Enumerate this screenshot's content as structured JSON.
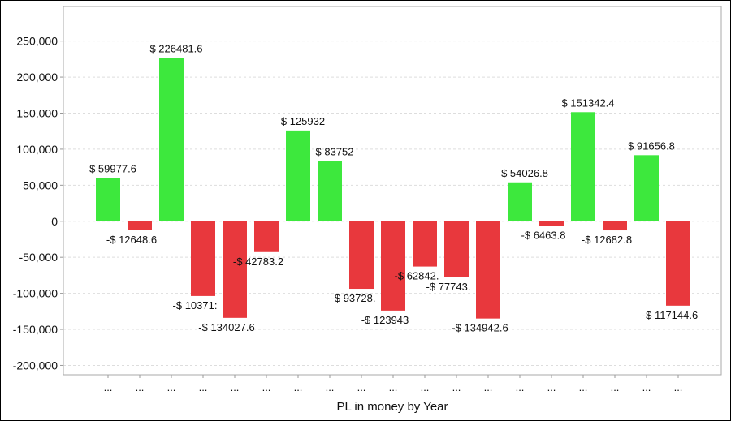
{
  "chart_data": {
    "type": "bar",
    "title": "",
    "xlabel": "PL in money by Year",
    "ylabel": "",
    "ylim": [
      -213000,
      298000
    ],
    "yticks": [
      -200000,
      -150000,
      -100000,
      -50000,
      0,
      50000,
      100000,
      150000,
      200000,
      250000
    ],
    "ytick_labels": [
      "-200,000",
      "-150,000",
      "-100,000",
      "-50,000",
      "0",
      "50,000",
      "100,000",
      "150,000",
      "200,000",
      "250,000"
    ],
    "grid": true,
    "categories": [
      "...",
      "...",
      "...",
      "...",
      "...",
      "...",
      "...",
      "...",
      "...",
      "...",
      "...",
      "...",
      "...",
      "...",
      "...",
      "...",
      "...",
      "...",
      "..."
    ],
    "values": [
      59977.6,
      -12648.6,
      226481.6,
      -103713,
      -134027.6,
      -42783.2,
      125932,
      83752,
      -93728.8,
      -123943,
      -62842.8,
      -77743.2,
      -134942.6,
      54026.8,
      -6463.8,
      151342.4,
      -12682.8,
      91656.8,
      -117144.6
    ],
    "data_labels": [
      "$ 59977.6",
      "-$ 12648.6",
      "$ 226481.6",
      "-$ 10371:",
      "-$ 134027.6",
      "-$ 42783.2",
      "$ 125932",
      "$ 83752",
      "-$ 93728.",
      "-$ 123943",
      "-$ 62842.",
      "-$ 77743.",
      "-$ 134942.6",
      "$ 54026.8",
      "-$ 6463.8",
      "$ 151342.4",
      "-$ 12682.8",
      "$ 91656.8",
      "-$ 117144.6"
    ],
    "colors": {
      "positive": "#3de83d",
      "negative": "#e8383d",
      "grid": "#dddddd",
      "axis": "#999999"
    }
  }
}
